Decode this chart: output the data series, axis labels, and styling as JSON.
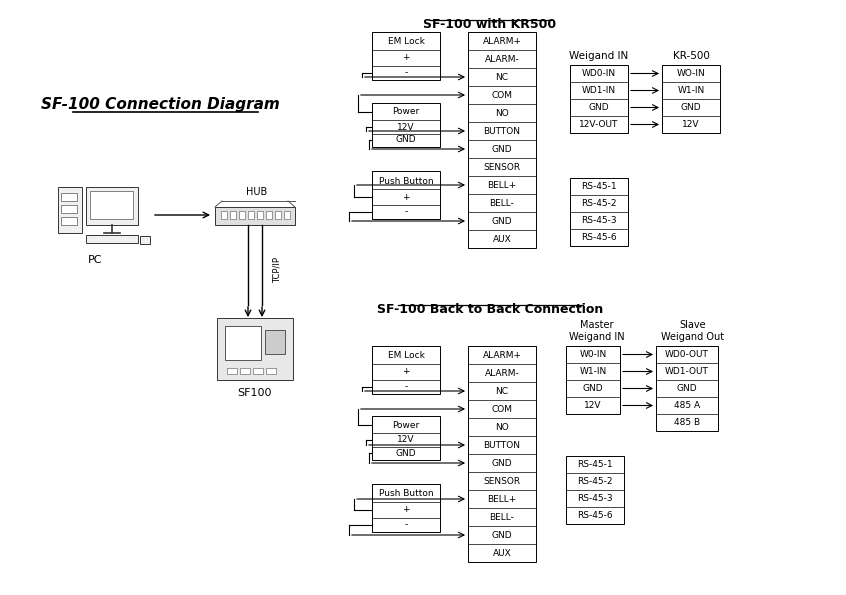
{
  "bg_color": "#ffffff",
  "title_main": "SF-100 Connection Diagram",
  "section1_title": "SF-100 with KR500",
  "section2_title": "SF-100 Back to Back Connection",
  "weigand_in": "Weigand IN",
  "kr500_label": "KR-500",
  "rs45_labels_top": [
    "RS-45-1",
    "RS-45-2",
    "RS-45-3",
    "RS-45-6"
  ],
  "rs45_labels_bot": [
    "RS-45-1",
    "RS-45-2",
    "RS-45-3",
    "RS-45-6"
  ],
  "weigand_in_top": [
    "WD0-IN",
    "WD1-IN",
    "GND",
    "12V-OUT"
  ],
  "kr500_top": [
    "WO-IN",
    "W1-IN",
    "GND",
    "12V"
  ],
  "weigand_in_bot": [
    "W0-IN",
    "W1-IN",
    "GND",
    "12V"
  ],
  "slave_out_bot": [
    "WD0-OUT",
    "WD1-OUT",
    "GND",
    "485 A",
    "485 B"
  ],
  "main_box_rows": [
    "ALARM+",
    "ALARM-",
    "NC",
    "COM",
    "NO",
    "BUTTON",
    "GND",
    "SENSOR",
    "BELL+",
    "BELL-",
    "GND",
    "AUX"
  ],
  "text_color": "#000000",
  "hub_label": "HUB",
  "pc_label": "PC",
  "sf100_label": "SF100",
  "tcpip_label": "TCP/IP"
}
